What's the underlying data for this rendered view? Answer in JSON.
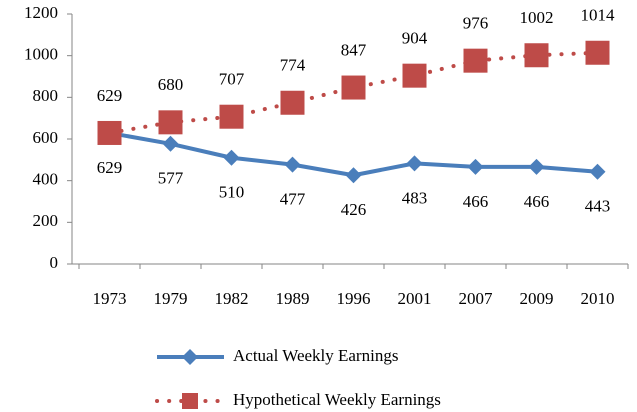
{
  "chart_data": {
    "type": "line",
    "categories": [
      "1973",
      "1979",
      "1982",
      "1989",
      "1996",
      "2001",
      "2007",
      "2009",
      "2010"
    ],
    "series": [
      {
        "name": "Actual Weekly Earnings",
        "color": "#4a7ebb",
        "marker": "diamond",
        "line_style": "solid",
        "label_position": "below",
        "values": [
          629,
          577,
          510,
          477,
          426,
          483,
          466,
          466,
          443
        ]
      },
      {
        "name": "Hypothetical Weekly Earnings",
        "color": "#be4b48",
        "marker": "square",
        "line_style": "dotted",
        "label_position": "above",
        "values": [
          629,
          680,
          707,
          774,
          847,
          904,
          976,
          1002,
          1014
        ]
      }
    ],
    "ylim": [
      0,
      1200
    ],
    "yticks": [
      0,
      200,
      400,
      600,
      800,
      1000,
      1200
    ],
    "grid": false,
    "legend": "bottom"
  }
}
